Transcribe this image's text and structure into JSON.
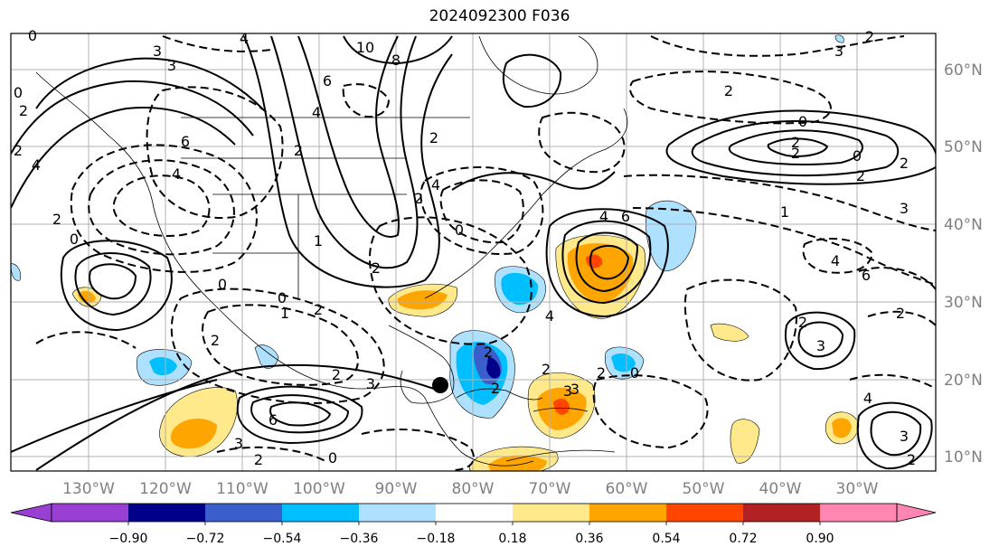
{
  "title": "2024092300 F036",
  "lon_labels": [
    "130°W",
    "120°W",
    "110°W",
    "100°W",
    "90°W",
    "80°W",
    "70°W",
    "60°W",
    "50°W",
    "40°W",
    "30°W"
  ],
  "lat_labels": [
    "60°N",
    "50°N",
    "40°N",
    "30°N",
    "20°N",
    "10°N"
  ],
  "colorbar": {
    "ticks": [
      "−0.90",
      "−0.72",
      "−0.54",
      "−0.36",
      "−0.18",
      "0.18",
      "0.36",
      "0.54",
      "0.72",
      "0.90"
    ],
    "colors": [
      "#9a3fd4",
      "#00008b",
      "#3a5fcd",
      "#00bfff",
      "#aee0ff",
      "#ffffff",
      "#ffe98a",
      "#ffa500",
      "#ff4500",
      "#b22222",
      "#ff85b3"
    ]
  },
  "contour_labels": [
    "0",
    "3",
    "3",
    "4",
    "10",
    "8",
    "6",
    "4",
    "6",
    "4",
    "2",
    "0",
    "2",
    "2",
    "4",
    "2",
    "0",
    "1",
    "2",
    "0",
    "2",
    "6",
    "3",
    "4",
    "6",
    "4",
    "2",
    "2",
    "2",
    "3",
    "3",
    "2",
    "0",
    "1",
    "2",
    "0",
    "2",
    "2",
    "0",
    "2",
    "3",
    "4",
    "6",
    "2",
    "3",
    "2",
    "4",
    "3",
    "2",
    "0",
    "2",
    "3",
    "2",
    "2",
    "1",
    "0",
    "2",
    "4",
    "0",
    "2",
    "3",
    "2",
    "2"
  ],
  "marker": "storm-center"
}
